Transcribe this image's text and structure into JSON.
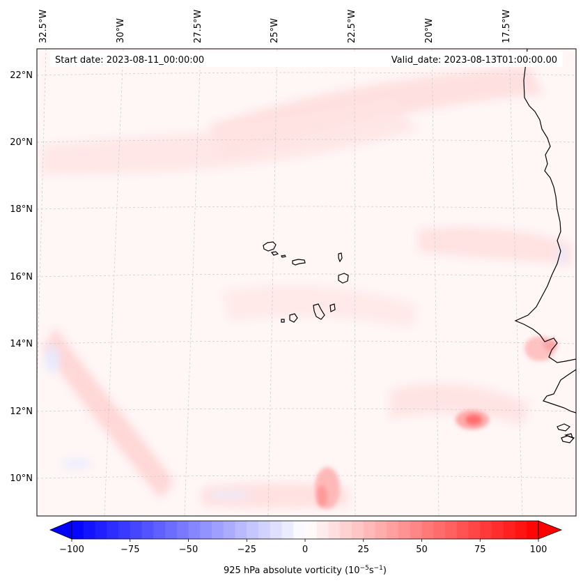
{
  "map": {
    "start_date": "Start date: 2023-08-11_00:00:00",
    "valid_date": "Valid_date: 2023-08-13T01:00:00.00",
    "lon_labels": [
      "32.5°W",
      "30°W",
      "27.5°W",
      "25°W",
      "22.5°W",
      "20°W",
      "17.5°W"
    ],
    "lat_labels": [
      "22°N",
      "20°N",
      "18°N",
      "16°N",
      "14°N",
      "12°N",
      "10°N"
    ],
    "colors": {
      "land_outline": "#000000",
      "gridline": "#c8c8c8",
      "field_base": "#fff6f6",
      "positive": "#ff0000",
      "negative": "#0000ff"
    }
  },
  "colorbar": {
    "label_prefix": "925 hPa absolute vorticity (10",
    "label_exp1": "−5",
    "label_mid": "s",
    "label_exp2": "−1",
    "label_suffix": ")",
    "ticks": [
      "−100",
      "−75",
      "−50",
      "−25",
      "0",
      "25",
      "50",
      "75",
      "100"
    ],
    "tick_values": [
      -100,
      -75,
      -50,
      -25,
      0,
      25,
      50,
      75,
      100
    ],
    "range": [
      -100,
      100
    ],
    "levels": 40
  }
}
